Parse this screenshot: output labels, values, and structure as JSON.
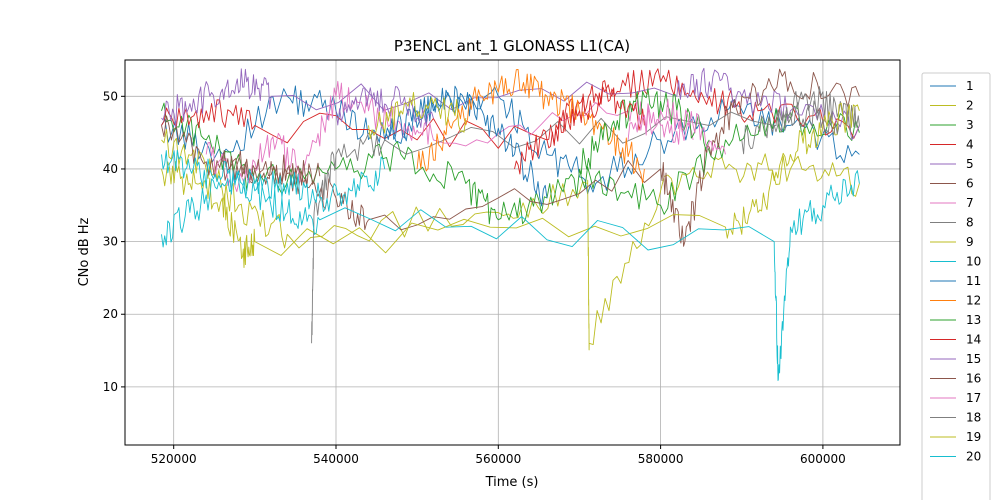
{
  "chart_data": {
    "type": "line",
    "title": "P3ENCL ant_1 GLONASS L1(CA)",
    "xlabel": "Time (s)",
    "ylabel": "CNo dB Hz",
    "xlim": [
      514000,
      609500
    ],
    "ylim": [
      2,
      55
    ],
    "xticks": [
      520000,
      540000,
      560000,
      580000,
      600000
    ],
    "yticks": [
      10,
      20,
      30,
      40,
      50
    ],
    "grid": true,
    "legend_placement": "outside-right",
    "series": [
      {
        "name": "1",
        "color": "#1f77b4",
        "x": [
          518500,
          526000,
          534000,
          540000,
          546000,
          552000,
          560000,
          566000,
          572000,
          580000,
          588000,
          596000,
          604500
        ],
        "y": [
          46,
          42,
          50,
          48,
          44,
          48,
          50,
          42,
          38,
          44,
          48,
          46,
          42
        ]
      },
      {
        "name": "2",
        "color": "#bcbd22",
        "x": [
          518500,
          524000,
          528000,
          534000,
          560000,
          571000,
          571200,
          580000,
          588000,
          596000,
          604500
        ],
        "y": [
          44,
          40,
          35,
          31,
          34,
          38,
          16,
          37,
          40,
          40,
          38
        ]
      },
      {
        "name": "3",
        "color": "#2ca02c",
        "x": [
          518500,
          524000,
          530000,
          540000,
          548000,
          556000,
          560000,
          566000,
          572000,
          580000,
          588000,
          596000,
          604500
        ],
        "y": [
          48,
          44,
          38,
          40,
          42,
          38,
          33,
          36,
          39,
          35,
          44,
          47,
          45
        ]
      },
      {
        "name": "4",
        "color": "#d62728",
        "x": [
          518500,
          524000,
          530000,
          566000,
          570000,
          574000,
          580000,
          586000,
          592000,
          604500
        ],
        "y": [
          46,
          48,
          46,
          44,
          49,
          51,
          52,
          50,
          48,
          46
        ]
      },
      {
        "name": "5",
        "color": "#9467bd",
        "x": [
          518500,
          522000,
          526000,
          529000,
          532000,
          582000,
          586000,
          590000,
          596000,
          604500
        ],
        "y": [
          47,
          49,
          51,
          52,
          50,
          50,
          52,
          50,
          48,
          46
        ]
      },
      {
        "name": "6",
        "color": "#8c564b",
        "x": [
          518500,
          524000,
          530000,
          536000,
          540000,
          544000,
          580000,
          583000,
          586000,
          590000,
          596000,
          604500
        ],
        "y": [
          46,
          41,
          40,
          38,
          36,
          33,
          40,
          30,
          43,
          50,
          52,
          50
        ]
      },
      {
        "name": "7",
        "color": "#e377c2",
        "x": [
          524000,
          528000,
          532000,
          536000,
          540000,
          544000,
          548000,
          552000,
          576000,
          580000,
          584000
        ],
        "y": [
          42,
          38,
          44,
          40,
          50,
          48,
          46,
          44,
          48,
          46,
          44
        ]
      },
      {
        "name": "8",
        "color": "#7f7f7f",
        "x": [
          537000,
          537300,
          540000,
          546000,
          594000,
          598000,
          602000,
          604500
        ],
        "y": [
          16,
          34,
          42,
          44,
          46,
          50,
          48,
          46
        ]
      },
      {
        "name": "9",
        "color": "#bcbd22",
        "x": [
          518500,
          522000,
          526000,
          528500,
          530000,
          588000,
          592000,
          596000,
          600000,
          604500
        ],
        "y": [
          40,
          38,
          36,
          28,
          30,
          32,
          34,
          42,
          46,
          48
        ]
      },
      {
        "name": "10",
        "color": "#17becf",
        "x": [
          518500,
          522000,
          526000,
          530000,
          534000,
          538000,
          594000,
          594500,
          596000,
          600000,
          604500
        ],
        "y": [
          31,
          34,
          38,
          37,
          34,
          33,
          30,
          11,
          32,
          35,
          38
        ]
      },
      {
        "name": "11",
        "color": "#1f77b4",
        "x": [
          546000,
          550000,
          554000,
          558000,
          562000,
          566000
        ],
        "y": [
          44,
          48,
          50,
          48,
          42,
          36
        ]
      },
      {
        "name": "12",
        "color": "#ff7f0e",
        "x": [
          550000,
          554000,
          558000,
          562000,
          566000,
          570000,
          574000,
          578000
        ],
        "y": [
          40,
          46,
          50,
          52,
          50,
          48,
          44,
          40
        ]
      },
      {
        "name": "13",
        "color": "#2ca02c",
        "x": [
          570000,
          574000,
          578000,
          582000,
          586000
        ],
        "y": [
          40,
          46,
          50,
          48,
          44
        ]
      },
      {
        "name": "14",
        "color": "#d62728",
        "x": [
          562000,
          566000,
          570000,
          574000,
          578000
        ],
        "y": [
          40,
          44,
          48,
          50,
          46
        ]
      },
      {
        "name": "15",
        "color": "#9467bd",
        "x": [
          540000,
          544000,
          548000,
          552000
        ],
        "y": [
          48,
          50,
          49,
          47
        ]
      },
      {
        "name": "16",
        "color": "#8c564b",
        "x": [
          526000,
          530000,
          534000,
          538000
        ],
        "y": [
          41,
          40,
          40,
          39
        ]
      },
      {
        "name": "17",
        "color": "#e377c2",
        "x": [
          576000,
          580000,
          584000,
          588000
        ],
        "y": [
          44,
          48,
          46,
          42
        ]
      },
      {
        "name": "18",
        "color": "#7f7f7f",
        "x": [
          590000,
          594000,
          598000,
          602000
        ],
        "y": [
          44,
          46,
          48,
          46
        ]
      },
      {
        "name": "19",
        "color": "#bcbd22",
        "x": [
          544000,
          548000,
          552000,
          556000
        ],
        "y": [
          46,
          48,
          49,
          47
        ]
      },
      {
        "name": "20",
        "color": "#17becf",
        "x": [
          518500,
          522000,
          526000,
          530000,
          534000,
          538000,
          542000,
          546000
        ],
        "y": [
          42,
          40,
          39,
          38,
          38,
          36,
          37,
          40
        ]
      }
    ]
  }
}
